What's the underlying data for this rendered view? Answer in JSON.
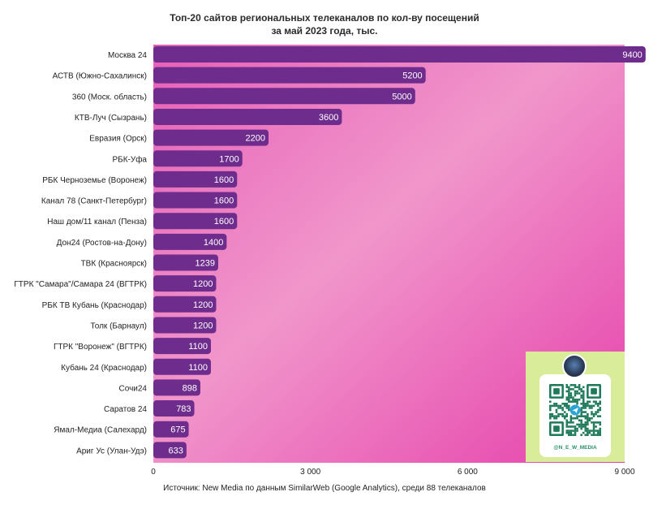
{
  "title_lines": [
    "Топ-20 сайтов региональных телеканалов по кол-ву посещений",
    "за май 2023 года, тыс."
  ],
  "source_note": "Источник: New Media по данным SimilarWeb (Google Analytics), среди 88 телеканалов",
  "qr_card": {
    "handle": "@N_E_W_MEDIA"
  },
  "colors": {
    "bar": "#6e2d8d",
    "bar_label": "#ffffff",
    "plot_bg_top": "#e65fb7",
    "plot_bg_mid": "#f196cb",
    "plot_bg_bottom": "#e540ab",
    "qr_card": "#d9ec9a",
    "qr_text": "#2a8f6a"
  },
  "chart_data": {
    "type": "bar",
    "orientation": "horizontal",
    "categories": [
      "Москва 24",
      "АСТВ (Южно-Сахалинск)",
      "360 (Моск. область)",
      "КТВ-Луч (Сызрань)",
      "Евразия (Орск)",
      "РБК-Уфа",
      "РБК Черноземье (Воронеж)",
      "Канал 78 (Санкт-Петербург)",
      "Наш дом/11 канал (Пенза)",
      "Дон24 (Ростов-на-Дону)",
      "ТВК (Красноярск)",
      "ГТРК \"Самара\"/Самара 24 (ВГТРК)",
      "РБК ТВ Кубань (Краснодар)",
      "Толк (Барнаул)",
      "ГТРК \"Воронеж\" (ВГТРК)",
      "Кубань 24 (Краснодар)",
      "Сочи24",
      "Саратов 24",
      "Ямал-Медиа (Салехард)",
      "Ариг Ус (Улан-Удэ)"
    ],
    "values": [
      9400,
      5200,
      5000,
      3600,
      2200,
      1700,
      1600,
      1600,
      1600,
      1400,
      1239,
      1200,
      1200,
      1200,
      1100,
      1100,
      898,
      783,
      675,
      633
    ],
    "value_labels": [
      "9400",
      "5200",
      "5000",
      "3600",
      "2200",
      "1700",
      "1600",
      "1600",
      "1600",
      "1400",
      "1239",
      "1200",
      "1200",
      "1200",
      "1100",
      "1100",
      "898",
      "783",
      "675",
      "633"
    ],
    "xlim": [
      0,
      9000
    ],
    "xticks": [
      0,
      3000,
      6000,
      9000
    ],
    "xtick_labels": [
      "0",
      "3 000",
      "6 000",
      "9 000"
    ],
    "grid": false,
    "legend": "none"
  }
}
